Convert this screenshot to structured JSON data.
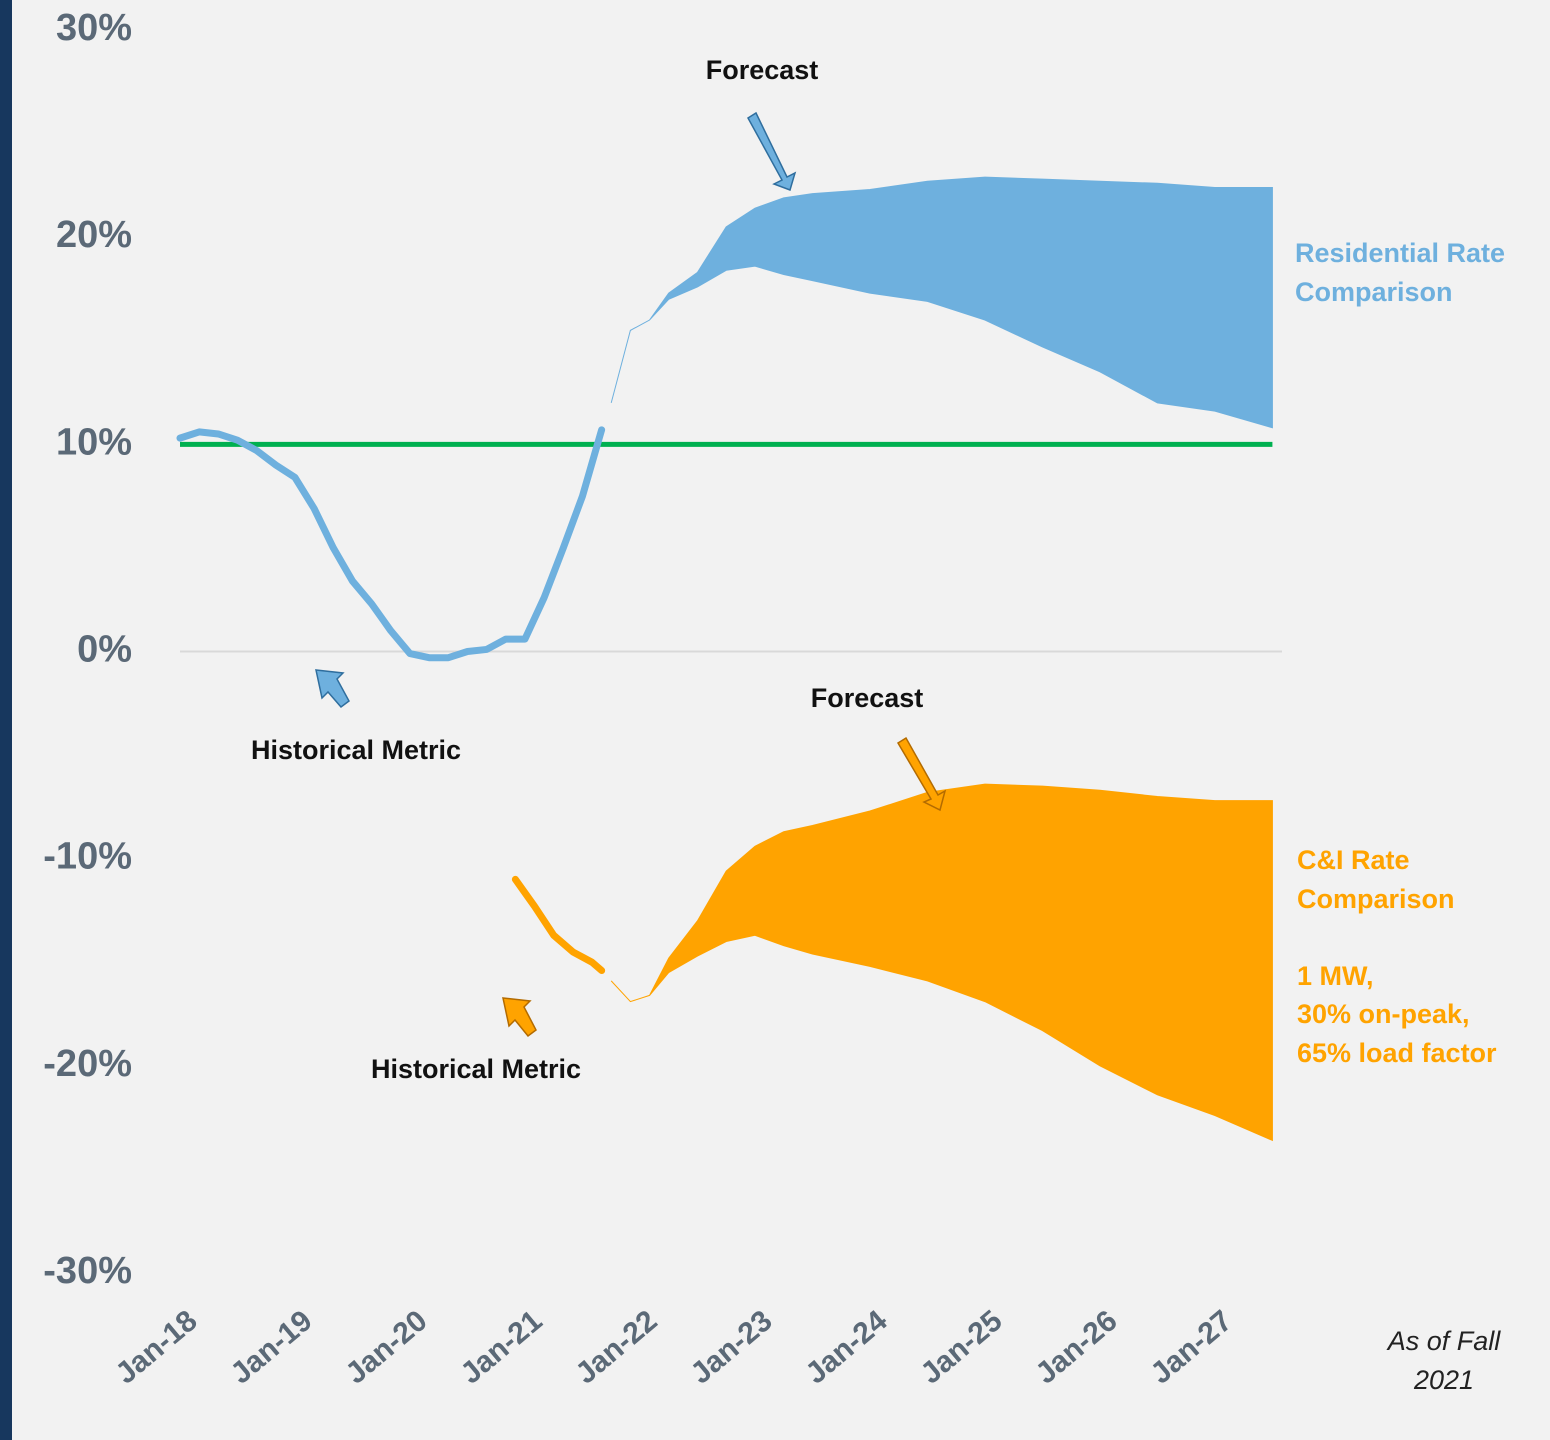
{
  "chart_data": {
    "type": "line",
    "ylim": [
      -30,
      30
    ],
    "yticks": [
      {
        "value": 30,
        "label": "30%"
      },
      {
        "value": 20,
        "label": "20%"
      },
      {
        "value": 10,
        "label": "10%"
      },
      {
        "value": 0,
        "label": "0%"
      },
      {
        "value": -10,
        "label": "-10%"
      },
      {
        "value": -20,
        "label": "-20%"
      },
      {
        "value": -30,
        "label": "-30%"
      }
    ],
    "xlim": [
      "Jan-18",
      "Aug-27"
    ],
    "xticks": [
      "Jan-18",
      "Jan-19",
      "Jan-20",
      "Jan-21",
      "Jan-22",
      "Jan-23",
      "Jan-24",
      "Jan-25",
      "Jan-26",
      "Jan-27"
    ],
    "reference_line": {
      "color": "#00b050",
      "value": 10,
      "x": [
        "Jan-18",
        "Jul-27"
      ]
    },
    "historical": [
      {
        "color": "#6eb0de",
        "x": [
          "Jan-18",
          "Mar-18",
          "May-18",
          "Jul-18",
          "Sep-18",
          "Nov-18",
          "Jan-19",
          "Mar-19",
          "May-19",
          "Jul-19",
          "Sep-19",
          "Nov-19",
          "Jan-20",
          "Mar-20",
          "May-20",
          "Jul-20",
          "Sep-20",
          "Nov-20",
          "Jan-21",
          "Mar-21",
          "May-21",
          "Jul-21",
          "Sep-21"
        ],
        "values": [
          10.3,
          10.6,
          10.5,
          10.2,
          9.7,
          9.0,
          8.4,
          6.9,
          5.0,
          3.4,
          2.3,
          1.0,
          -0.1,
          -0.3,
          -0.3,
          0.0,
          0.1,
          0.6,
          0.6,
          2.6,
          5.0,
          7.5,
          10.7
        ]
      },
      {
        "color": "#ffa300",
        "x": [
          "Dec-20",
          "Feb-21",
          "Apr-21",
          "Jun-21",
          "Aug-21",
          "Sep-21"
        ],
        "values": [
          -11.0,
          -12.3,
          -13.7,
          -14.5,
          -15.0,
          -15.4
        ]
      }
    ],
    "forecast_bands": [
      {
        "color": "#6eb0de",
        "x": [
          "Oct-21",
          "Dec-21",
          "Feb-22",
          "Apr-22",
          "Jul-22",
          "Oct-22",
          "Jan-23",
          "Apr-23",
          "Jul-23",
          "Jan-24",
          "Jul-24",
          "Jan-25",
          "Jul-25",
          "Jan-26",
          "Jul-26",
          "Jan-27",
          "Jul-27"
        ],
        "upper": [
          12.0,
          15.5,
          16.0,
          17.3,
          18.3,
          20.5,
          21.4,
          21.9,
          22.1,
          22.3,
          22.7,
          22.9,
          22.8,
          22.7,
          22.6,
          22.4,
          22.4
        ],
        "lower": [
          12.0,
          15.5,
          16.0,
          17.0,
          17.6,
          18.4,
          18.6,
          18.2,
          17.9,
          17.3,
          16.9,
          16.0,
          14.7,
          13.5,
          12.0,
          11.6,
          10.8
        ]
      },
      {
        "color": "#ffa300",
        "x": [
          "Oct-21",
          "Dec-21",
          "Feb-22",
          "Apr-22",
          "Jul-22",
          "Oct-22",
          "Jan-23",
          "Apr-23",
          "Jul-23",
          "Jan-24",
          "Jul-24",
          "Jan-25",
          "Jul-25",
          "Jan-26",
          "Jul-26",
          "Jan-27",
          "Jul-27"
        ],
        "upper": [
          -15.9,
          -16.9,
          -16.6,
          -14.8,
          -13.0,
          -10.6,
          -9.4,
          -8.7,
          -8.4,
          -7.7,
          -6.8,
          -6.4,
          -6.5,
          -6.7,
          -7.0,
          -7.2,
          -7.2
        ],
        "lower": [
          -15.9,
          -16.9,
          -16.6,
          -15.5,
          -14.7,
          -14.0,
          -13.7,
          -14.2,
          -14.6,
          -15.2,
          -15.9,
          -16.9,
          -18.3,
          -20.0,
          -21.4,
          -22.4,
          -23.6
        ]
      }
    ],
    "annotations": {
      "forecast_top": "Forecast",
      "forecast_bottom": "Forecast",
      "historical_top": "Historical Metric",
      "historical_bottom": "Historical Metric",
      "residential": [
        "Residential Rate",
        "Comparison"
      ],
      "ci": [
        "C&I Rate",
        "Comparison"
      ],
      "ci_detail": [
        "1 MW,",
        "30% on-peak,",
        "65% load factor"
      ],
      "as_of": [
        "As of Fall",
        "2021"
      ]
    }
  }
}
